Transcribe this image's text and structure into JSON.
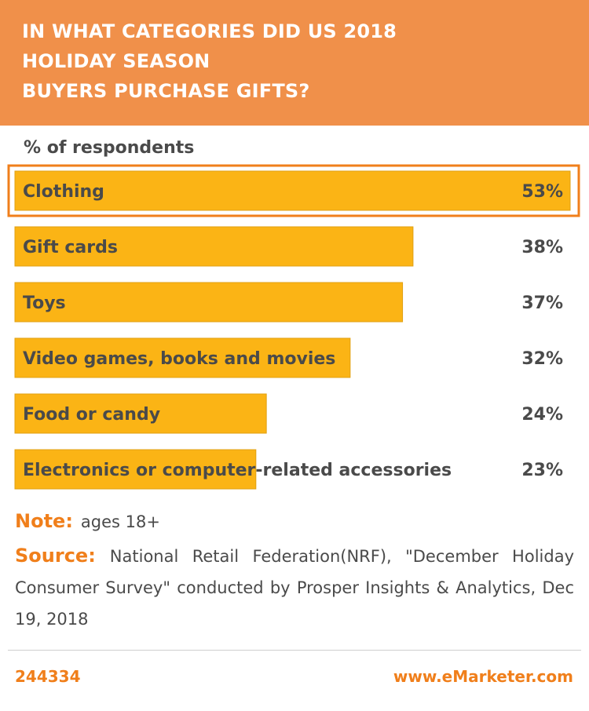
{
  "header": {
    "title_lines": [
      "IN WHAT CATEGORIES DID US 2018",
      "HOLIDAY SEASON",
      "BUYERS PURCHASE GIFTS?"
    ],
    "background_color": "#f0904a"
  },
  "chart_data": {
    "type": "bar",
    "orientation": "horizontal",
    "title": "IN WHAT CATEGORIES DID US 2018 HOLIDAY SEASON BUYERS PURCHASE GIFTS?",
    "subtitle": "% of respondents",
    "categories": [
      "Clothing",
      "Gift cards",
      "Toys",
      "Video games, books and movies",
      "Food or candy",
      "Electronics or computer-related accessories"
    ],
    "values": [
      53,
      38,
      37,
      32,
      24,
      23
    ],
    "value_labels": [
      "53%",
      "38%",
      "37%",
      "32%",
      "24%",
      "23%"
    ],
    "highlighted_category": "Clothing",
    "bar_color": "#fbb415",
    "highlight_border_color": "#f07f1b",
    "xlim": [
      0,
      53
    ],
    "grid": false,
    "legend": "none"
  },
  "note": {
    "label": "Note:",
    "text": "ages 18+"
  },
  "source": {
    "label": "Source:",
    "text": "National Retail Federation(NRF), \"December Holiday Consumer Survey\" conducted by Prosper Insights & Analytics, Dec 19, 2018"
  },
  "footer": {
    "chart_id": "244334",
    "url": "www.eMarketer.com"
  },
  "colors": {
    "accent": "#f07f1b",
    "text": "#4a4a4a"
  }
}
